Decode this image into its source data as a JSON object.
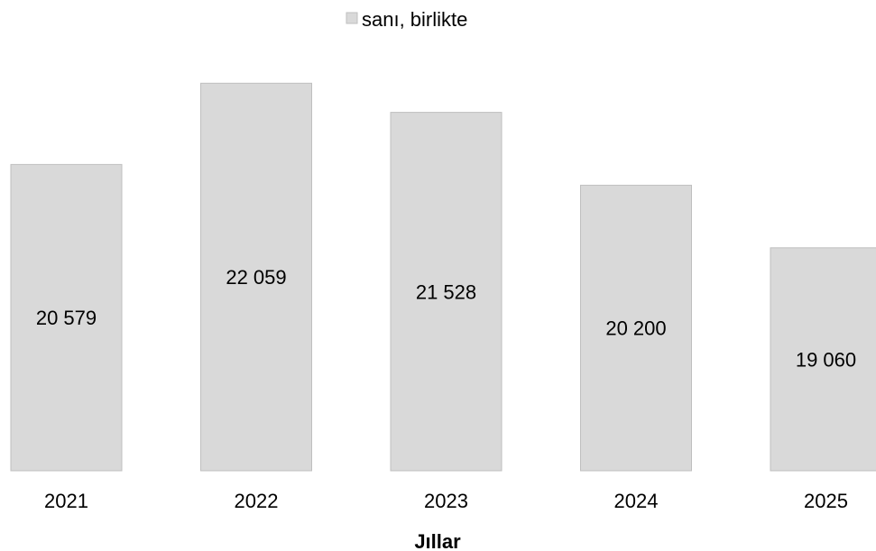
{
  "chart_data": {
    "type": "bar",
    "categories": [
      "2021",
      "2022",
      "2023",
      "2024",
      "2025"
    ],
    "series": [
      {
        "name": "sanı, birlikte",
        "values": [
          20579,
          22059,
          21528,
          20200,
          19060
        ],
        "value_labels": [
          "20 579",
          "22 059",
          "21 528",
          "20 200",
          "19 060"
        ],
        "color": "#d9d9d9",
        "border_color": "#bfbfbf"
      }
    ],
    "title": "",
    "xlabel": "Jıllar",
    "ylabel": "",
    "ylim": [
      15000,
      23000
    ],
    "grid": false,
    "legend": "top-center"
  }
}
